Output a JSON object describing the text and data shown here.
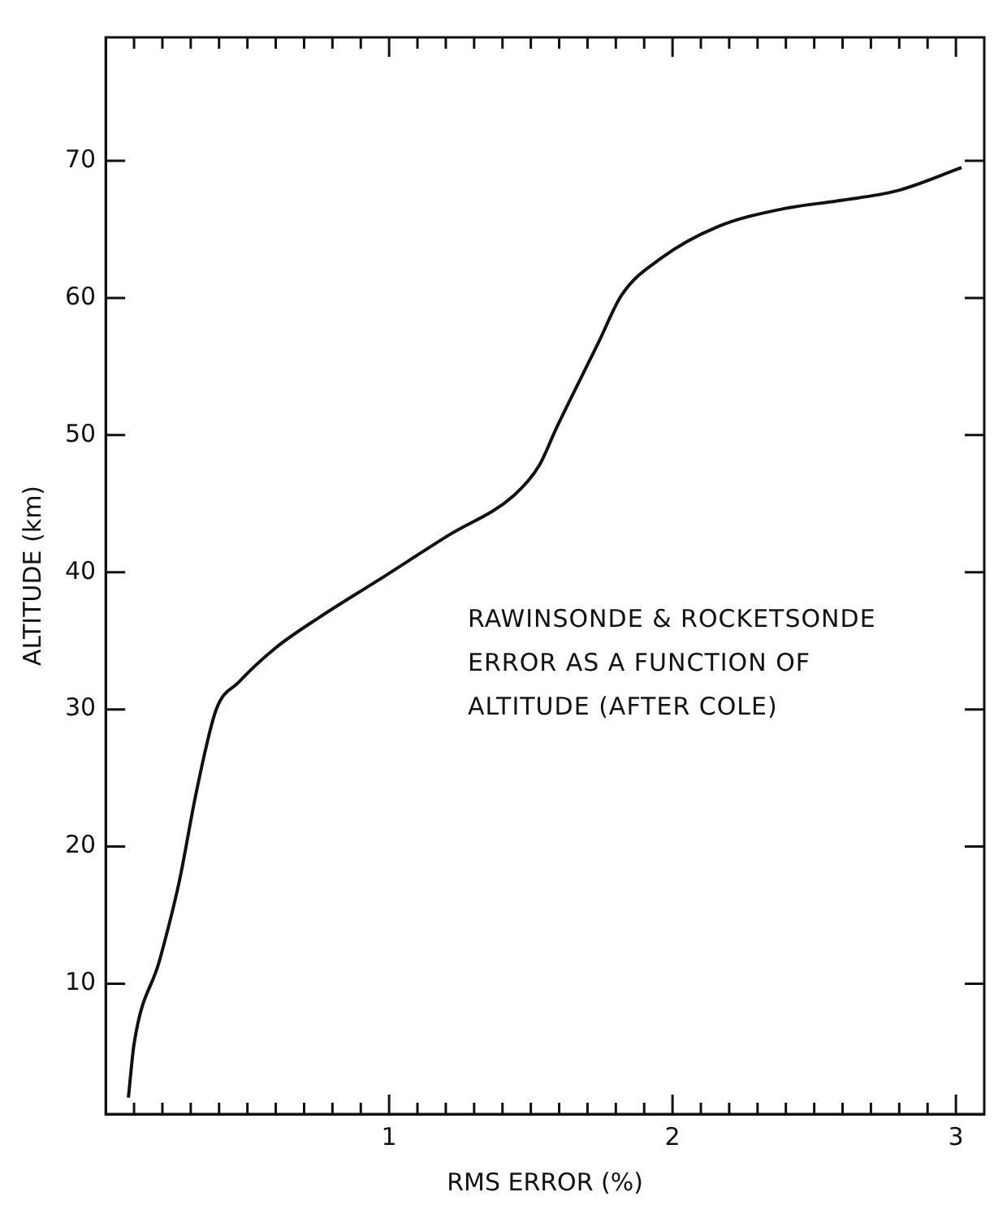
{
  "chart_data": {
    "type": "line",
    "xlabel": "RMS ERROR (%)",
    "ylabel": "ALTITUDE (km)",
    "annotations": [
      "RAWINSONDE & ROCKETSONDE\nERROR AS A FUNCTION OF\nALTITUDE (AFTER COLE)"
    ],
    "xlim": [
      0,
      3.1
    ],
    "ylim": [
      0.5,
      79
    ],
    "xticks": [
      {
        "value": 0.1,
        "label": null
      },
      {
        "value": 0.2,
        "label": null
      },
      {
        "value": 0.3,
        "label": null
      },
      {
        "value": 0.4,
        "label": null
      },
      {
        "value": 0.5,
        "label": null
      },
      {
        "value": 0.6,
        "label": null
      },
      {
        "value": 0.7,
        "label": null
      },
      {
        "value": 0.8,
        "label": null
      },
      {
        "value": 0.9,
        "label": null
      },
      1,
      {
        "value": 1.1,
        "label": null
      },
      {
        "value": 1.2,
        "label": null
      },
      {
        "value": 1.3,
        "label": null
      },
      {
        "value": 1.4,
        "label": null
      },
      {
        "value": 1.5,
        "label": null
      },
      {
        "value": 1.6,
        "label": null
      },
      {
        "value": 1.7,
        "label": null
      },
      {
        "value": 1.8,
        "label": null
      },
      {
        "value": 1.9,
        "label": null
      },
      2,
      {
        "value": 2.1,
        "label": null
      },
      {
        "value": 2.2,
        "label": null
      },
      {
        "value": 2.3,
        "label": null
      },
      {
        "value": 2.4,
        "label": null
      },
      {
        "value": 2.5,
        "label": null
      },
      {
        "value": 2.6,
        "label": null
      },
      {
        "value": 2.7,
        "label": null
      },
      {
        "value": 2.8,
        "label": null
      },
      {
        "value": 2.9,
        "label": null
      },
      3
    ],
    "yticks": [
      10,
      20,
      30,
      40,
      50,
      60,
      70
    ],
    "grid": false,
    "legend": false,
    "marker": "none",
    "line_style": "solid",
    "series": [
      {
        "color": "#111111",
        "x": [
          0.08,
          0.1,
          0.19,
          0.26,
          0.32,
          0.39,
          0.47,
          0.6,
          0.76,
          0.96,
          1.21,
          1.44,
          1.53,
          1.59,
          1.74,
          1.82,
          1.96,
          2.16,
          2.39,
          2.59,
          2.79,
          3.02
        ],
        "values": [
          1.7,
          5.6,
          11.7,
          17.5,
          24,
          30,
          32,
          34.5,
          36.8,
          39.4,
          42.7,
          45.6,
          47.8,
          50.5,
          56.8,
          60.2,
          62.9,
          65.2,
          66.5,
          67.1,
          67.8,
          69.5
        ]
      }
    ]
  }
}
